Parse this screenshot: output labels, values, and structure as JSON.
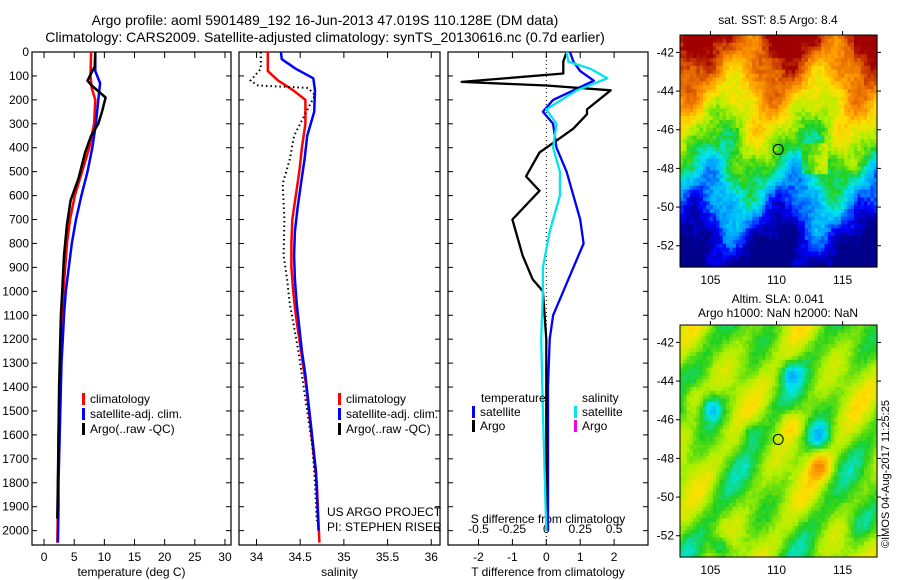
{
  "header": {
    "title_line1": "Argo profile: aoml 5901489_192 16-Jun-2013 47.019S 110.128E (DM data)",
    "title_line2": "Climatology: CARS2009. Satellite-adjusted climatology: synTS_20130616.nc (0.7d earlier)"
  },
  "colors": {
    "climatology": "#ff0000",
    "satellite": "#0000ff",
    "argo": "#000000",
    "salinity_satellite": "#00e5ee",
    "salinity_argo": "#ee00ee"
  },
  "chart_data": [
    {
      "type": "line",
      "name": "temperature-profile",
      "xlabel": "temperature (deg C)",
      "ylabel": "",
      "xlim": [
        -2,
        31
      ],
      "ylim": [
        2060,
        0
      ],
      "xticks": [
        0,
        5,
        10,
        15,
        20,
        25,
        30
      ],
      "yticks": [
        0,
        100,
        200,
        300,
        400,
        500,
        600,
        700,
        800,
        900,
        1000,
        1100,
        1200,
        1300,
        1400,
        1500,
        1600,
        1700,
        1800,
        1900,
        2000
      ],
      "legend": [
        "climatology",
        "satellite-adj. clim.",
        "Argo(..raw -QC)"
      ],
      "legend_position": "center",
      "series": [
        {
          "name": "climatology",
          "x": [
            7.8,
            7.7,
            7.9,
            8.5,
            8.3,
            7.5,
            6.3,
            5.1,
            4.3,
            3.8,
            3.5,
            3.2,
            3.0,
            2.8,
            2.7,
            2.6,
            2.5,
            2.4,
            2.4,
            2.3,
            2.3,
            2.2
          ],
          "y": [
            0,
            100,
            150,
            200,
            300,
            400,
            500,
            600,
            700,
            800,
            900,
            1000,
            1100,
            1200,
            1300,
            1400,
            1500,
            1600,
            1700,
            1800,
            1900,
            2050
          ]
        },
        {
          "name": "satellite-adj. clim.",
          "x": [
            8.5,
            8.5,
            9.3,
            9.0,
            8.6,
            8.0,
            7.2,
            6.2,
            5.3,
            4.6,
            4.1,
            3.6,
            3.3,
            3.1,
            2.9,
            2.8,
            2.7,
            2.6,
            2.5,
            2.4,
            2.4,
            2.3
          ],
          "y": [
            0,
            80,
            130,
            200,
            300,
            400,
            500,
            600,
            700,
            800,
            900,
            1000,
            1100,
            1200,
            1300,
            1400,
            1500,
            1600,
            1700,
            1800,
            1900,
            2050
          ]
        },
        {
          "name": "Argo",
          "x": [
            8.5,
            8.4,
            7.2,
            7.9,
            10.2,
            9.6,
            9.0,
            7.8,
            6.8,
            5.7,
            4.4,
            3.8,
            3.3,
            3.0,
            2.8,
            2.7,
            2.6,
            2.5,
            2.4,
            2.3,
            2.2
          ],
          "y": [
            0,
            60,
            120,
            140,
            190,
            250,
            300,
            350,
            420,
            530,
            620,
            720,
            850,
            1000,
            1100,
            1200,
            1300,
            1400,
            1600,
            1800,
            1950
          ]
        }
      ],
      "annotations": []
    },
    {
      "type": "line",
      "name": "salinity-profile",
      "xlabel": "salinity",
      "xlim": [
        33.8,
        36.1
      ],
      "ylim": [
        2060,
        0
      ],
      "xticks": [
        34,
        34.5,
        35,
        35.5,
        36
      ],
      "legend": [
        "climatology",
        "satellite-adj. clim.",
        "Argo(..raw -QC)"
      ],
      "legend_position": "bottom-right",
      "series": [
        {
          "name": "climatology",
          "x": [
            34.13,
            34.13,
            34.25,
            34.42,
            34.56,
            34.56,
            34.52,
            34.49,
            34.45,
            34.41,
            34.4,
            34.4,
            34.42,
            34.45,
            34.49,
            34.53,
            34.57,
            34.6,
            34.63,
            34.66,
            34.69,
            34.72
          ],
          "y": [
            0,
            80,
            120,
            160,
            200,
            300,
            400,
            500,
            600,
            700,
            800,
            900,
            1000,
            1100,
            1200,
            1300,
            1400,
            1500,
            1600,
            1700,
            1800,
            2050
          ]
        },
        {
          "name": "satellite-adj. clim.",
          "x": [
            34.28,
            34.29,
            34.45,
            34.65,
            34.67,
            34.66,
            34.58,
            34.55,
            34.51,
            34.47,
            34.44,
            34.43,
            34.44,
            34.46,
            34.49,
            34.52,
            34.56,
            34.59,
            34.62,
            34.65,
            34.68,
            34.71
          ],
          "y": [
            0,
            30,
            70,
            110,
            160,
            250,
            350,
            450,
            550,
            650,
            750,
            850,
            950,
            1050,
            1150,
            1250,
            1350,
            1450,
            1550,
            1650,
            1750,
            2000
          ]
        },
        {
          "name": "Argo",
          "style": "dotted",
          "x": [
            34.05,
            34.05,
            33.93,
            34.02,
            34.59,
            34.67,
            34.57,
            34.43,
            34.38,
            34.3,
            34.32,
            34.31,
            34.35,
            34.38,
            34.43,
            34.48,
            34.52,
            34.56,
            34.6,
            34.64,
            34.67,
            34.69
          ],
          "y": [
            0,
            70,
            120,
            140,
            150,
            180,
            250,
            350,
            450,
            550,
            700,
            850,
            950,
            1050,
            1150,
            1250,
            1350,
            1450,
            1550,
            1650,
            1800,
            1960
          ]
        }
      ],
      "annotations": [
        "US ARGO PROJECT",
        "PI: STEPHEN RISER"
      ]
    },
    {
      "type": "line",
      "name": "difference-profile",
      "xlabel": "T difference from climatology",
      "xlabel_top": "S difference from climatology",
      "xlim": [
        -2.9,
        3.0
      ],
      "ylim": [
        2060,
        0
      ],
      "xticks": [
        -2,
        -1,
        0,
        1,
        2
      ],
      "xticks_s": [
        -0.5,
        -0.25,
        0,
        0.25,
        0.5
      ],
      "xticklabels_s": [
        "-0.5",
        "-0.25",
        "0",
        "0.25",
        "0.5"
      ],
      "legend_groups": [
        {
          "title": "temperature",
          "items": [
            "satellite",
            "Argo"
          ]
        },
        {
          "title": "salinity",
          "items": [
            "satellite",
            "Argo"
          ]
        }
      ],
      "legend_position": "bottom",
      "series": [
        {
          "name": "temperature satellite",
          "x": [
            0.7,
            0.8,
            1.0,
            1.4,
            0.2,
            -0.1,
            0.2,
            0.3,
            0.6,
            0.8,
            1.0,
            1.1,
            0.8,
            0.5,
            0.2,
            0.1,
            0.05,
            0.05,
            0.05,
            0.05
          ],
          "y": [
            0,
            40,
            80,
            120,
            200,
            250,
            300,
            400,
            500,
            600,
            700,
            800,
            900,
            1000,
            1100,
            1200,
            1400,
            1600,
            1800,
            2000
          ]
        },
        {
          "name": "temperature Argo",
          "x": [
            0.6,
            0.5,
            0.5,
            -2.5,
            0.0,
            1.9,
            1.2,
            1.2,
            0.8,
            0.4,
            -0.2,
            -0.6,
            -0.2,
            -1.0,
            -0.9,
            -0.7,
            -0.4,
            -0.1,
            0.0,
            0.0,
            0.0
          ],
          "y": [
            0,
            40,
            90,
            125,
            140,
            160,
            240,
            260,
            320,
            360,
            420,
            520,
            580,
            700,
            750,
            850,
            950,
            1000,
            1200,
            1600,
            2000
          ]
        },
        {
          "name": "salinity satellite",
          "x": [
            0.6,
            0.65,
            1.3,
            1.8,
            0.9,
            0.0,
            0.3,
            0.2,
            0.4,
            0.4,
            0.1,
            -0.1,
            -0.1,
            -0.15,
            -0.1,
            0.0
          ],
          "y": [
            0,
            40,
            70,
            110,
            160,
            240,
            300,
            400,
            500,
            600,
            750,
            900,
            1000,
            1200,
            1500,
            2000
          ]
        }
      ],
      "annotations": []
    },
    {
      "type": "heatmap",
      "name": "sst-map",
      "title": "sat. SST: 8.5 Argo: 8.4",
      "xlim": [
        102.7,
        117.6
      ],
      "ylim": [
        -53.1,
        -41.1
      ],
      "xticks": [
        105,
        110,
        115
      ],
      "yticks": [
        -42,
        -44,
        -46,
        -48,
        -50,
        -52
      ],
      "marker": {
        "lon": 110.128,
        "lat": -47.019
      },
      "colormap": "jet"
    },
    {
      "type": "heatmap",
      "name": "sla-map",
      "title_line1": "Altim. SLA: 0.041",
      "title_line2": "Argo h1000: NaN h2000: NaN",
      "xlim": [
        102.7,
        117.6
      ],
      "ylim": [
        -53.1,
        -41.1
      ],
      "xticks": [
        105,
        110,
        115
      ],
      "yticks": [
        -42,
        -44,
        -46,
        -48,
        -50,
        -52
      ],
      "marker": {
        "lon": 110.128,
        "lat": -47.019
      },
      "colormap": "jet"
    }
  ],
  "footer": {
    "credit": "©IMOS 04-Aug-2017 11:25:25"
  }
}
